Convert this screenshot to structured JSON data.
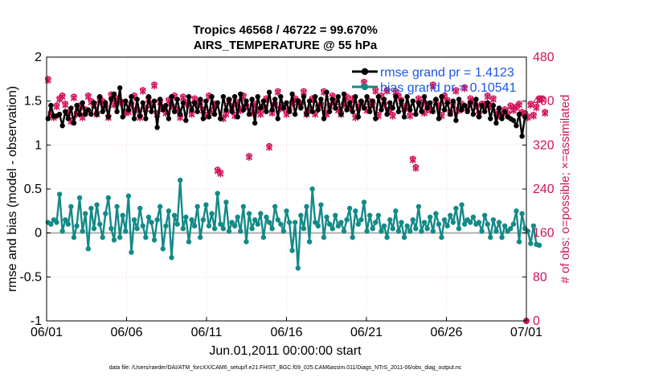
{
  "chart_data": {
    "type": "line",
    "title": [
      "Tropics 46568 / 46722 = 99.670%",
      "AIRS_TEMPERATURE @ 55 hPa"
    ],
    "xlabel": "Jun.01,2011 00:00:00 start",
    "ylabel_left": "rmse and bias (model - observation)",
    "ylabel_right": "# of obs: o=possible; ×=assimilated",
    "ylim_left": [
      -1,
      2
    ],
    "ylim_right": [
      0,
      480
    ],
    "xlim": [
      0,
      30
    ],
    "x_ticks": [
      0,
      5,
      10,
      15,
      20,
      25,
      30
    ],
    "x_tick_labels": [
      "06/01",
      "06/06",
      "06/11",
      "06/16",
      "06/21",
      "06/26",
      "07/01"
    ],
    "y_ticks_left": [
      -1,
      -0.5,
      0,
      0.5,
      1,
      1.5,
      2
    ],
    "y_tick_labels_left": [
      "-1",
      "-0.5",
      "0",
      "0.5",
      "1",
      "1.5",
      "2"
    ],
    "y_ticks_right": [
      0,
      80,
      160,
      240,
      320,
      400,
      480
    ],
    "y_tick_labels_right": [
      "0",
      "80",
      "160",
      "240",
      "320",
      "400",
      "480"
    ],
    "grid": true,
    "legend_position": "top-right",
    "footnote": "data file: /Users/raeder/DAI/ATM_forcXX/CAM6_setup/f.e21.FHIST_BGC.f09_025.CAM6assim.011/Diags_NTrS_2011-06/obs_diag_output.nc",
    "colors": {
      "rmse": "#000000",
      "bias": "#138a88",
      "obs": "#d0125a",
      "legend_text": "#1a56e6",
      "zero_line": "#b0b0b0"
    },
    "series": [
      {
        "name": "rmse grand pr = 1.4123",
        "values": [
          1.3,
          1.45,
          1.33,
          1.33,
          1.35,
          1.22,
          1.38,
          1.3,
          1.42,
          1.25,
          1.45,
          1.35,
          1.48,
          1.35,
          1.4,
          1.35,
          1.48,
          1.35,
          1.55,
          1.38,
          1.48,
          1.32,
          1.52,
          1.58,
          1.38,
          1.65,
          1.32,
          1.5,
          1.4,
          1.55,
          1.3,
          1.52,
          1.33,
          1.48,
          1.3,
          1.55,
          1.38,
          1.5,
          1.2,
          1.52,
          1.4,
          1.45,
          1.3,
          1.55,
          1.38,
          1.52,
          1.35,
          1.48,
          1.28,
          1.55,
          1.4,
          1.48,
          1.38,
          1.52,
          1.3,
          1.5,
          1.32,
          1.55,
          1.35,
          1.48,
          1.3,
          1.55,
          1.4,
          1.52,
          1.38,
          1.55,
          1.32,
          1.58,
          1.4,
          1.5,
          1.35,
          1.52,
          1.25,
          1.55,
          1.42,
          1.5,
          1.38,
          1.6,
          1.4,
          1.52,
          1.3,
          1.55,
          1.42,
          1.48,
          1.38,
          1.58,
          1.35,
          1.5,
          1.42,
          1.55,
          1.35,
          1.5,
          1.38,
          1.55,
          1.4,
          1.52,
          1.3,
          1.6,
          1.38,
          1.52,
          1.42,
          1.55,
          1.35,
          1.58,
          1.4,
          1.48,
          1.38,
          1.55,
          1.32,
          1.5,
          1.42,
          1.55,
          1.38,
          1.5,
          1.3,
          1.55,
          1.4,
          1.52,
          1.35,
          1.48,
          1.42,
          1.55,
          1.38,
          1.5,
          1.32,
          1.55,
          1.4,
          1.5,
          1.35,
          1.48,
          1.38,
          1.55,
          1.42,
          1.48,
          1.38,
          1.52,
          1.3,
          1.55,
          1.4,
          1.48,
          1.35,
          1.5,
          1.28,
          1.52,
          1.4,
          1.45,
          1.38,
          1.48,
          1.35,
          1.52,
          1.32,
          1.45,
          1.38,
          1.48,
          1.3,
          1.45,
          1.25,
          1.42,
          1.3,
          1.38,
          1.32,
          1.3,
          1.28,
          1.22,
          1.35,
          1.1,
          1.32
        ]
      },
      {
        "name": "bias grand pr = 0.10541",
        "values": [
          0.12,
          0.1,
          0.15,
          0.12,
          0.44,
          0.02,
          0.15,
          0.1,
          0.3,
          -0.05,
          0.08,
          0.4,
          0.02,
          0.22,
          -0.18,
          0.28,
          0.05,
          0.32,
          0.1,
          -0.05,
          0.22,
          0.4,
          0.05,
          -0.08,
          0.3,
          -0.05,
          0.2,
          0.02,
          0.42,
          -0.22,
          0.15,
          0.05,
          0.28,
          0.08,
          -0.05,
          0.18,
          0.12,
          -0.08,
          0.15,
          0.3,
          -0.18,
          0.08,
          0.25,
          -0.28,
          0.2,
          0.1,
          0.6,
          0.05,
          0.18,
          -0.1,
          0.15,
          0.08,
          0.3,
          -0.05,
          0.15,
          0.32,
          0.08,
          0.22,
          0.05,
          0.45,
          0.1,
          0.05,
          0.35,
          0.02,
          0.12,
          0.08,
          0.18,
          0.02,
          0.3,
          -0.1,
          0.22,
          0.05,
          0.15,
          0.1,
          0.22,
          -0.05,
          0.18,
          0.12,
          0.05,
          0.3,
          0.15,
          0.1,
          0.02,
          0.25,
          0.12,
          -0.2,
          0.12,
          -0.4,
          0.2,
          0.05,
          0.3,
          -0.1,
          0.5,
          0.12,
          0.08,
          0.32,
          -0.05,
          0.18,
          0.1,
          0.05,
          0.2,
          0.08,
          0.12,
          0.02,
          0.15,
          0.28,
          -0.05,
          0.25,
          0.1,
          0.15,
          0.35,
          0.02,
          0.2,
          0.05,
          0.12,
          0.2,
          0.02,
          0.08,
          -0.05,
          0.15,
          0.05,
          0.25,
          0.02,
          0.12,
          -0.05,
          0.08,
          0.02,
          0.15,
          0.05,
          0.3,
          0.02,
          0.12,
          0.05,
          0.18,
          0.02,
          0.22,
          0.1,
          -0.05,
          0.15,
          0.08,
          0.2,
          0.12,
          0.28,
          0.05,
          0.32,
          0.1,
          0.15,
          0.12,
          0.18,
          0.1,
          0.12,
          0.02,
          0.2,
          0.1,
          -0.05,
          0.15,
          0.02,
          0.12,
          -0.05,
          0.08,
          0.02,
          0.05,
          0.1,
          0.25,
          -0.1,
          0.22,
          0.05,
          0.02,
          -0.12,
          0.08,
          -0.13,
          -0.14
        ]
      },
      {
        "name": "obs possible",
        "values": [
          440,
          378,
          372,
          392,
          405,
          410,
          395,
          380,
          365,
          408,
          378,
          392,
          372,
          385,
          410,
          400,
          395,
          378,
          405,
          400,
          390,
          372,
          412,
          395,
          405,
          400,
          398,
          380,
          382,
          395,
          410,
          385,
          372,
          420,
          388,
          405,
          395,
          430,
          378,
          400,
          388,
          380,
          402,
          392,
          410,
          385,
          372,
          408,
          398,
          395,
          378,
          405,
          395,
          400,
          385,
          375,
          410,
          382,
          395,
          275,
          270,
          370,
          378,
          402,
          390,
          375,
          398,
          385,
          410,
          392,
          300,
          380,
          395,
          385,
          378,
          390,
          405,
          318,
          380,
          395,
          418,
          388,
          392,
          378,
          385,
          398,
          405,
          400,
          395,
          418,
          378,
          385,
          405,
          378,
          390,
          395,
          418,
          378,
          392,
          410,
          400,
          385,
          378,
          395,
          408,
          390,
          405,
          372,
          390,
          398,
          435,
          385,
          400,
          395,
          420,
          375,
          410,
          395,
          420,
          385,
          375,
          418,
          410,
          402,
          388,
          392,
          375,
          295,
          280,
          405,
          398,
          380,
          395,
          385,
          430,
          400,
          392,
          375,
          410,
          402,
          380,
          395,
          420,
          385,
          395,
          425,
          390,
          405,
          400,
          392,
          378,
          395,
          395,
          410,
          392,
          405,
          380,
          375,
          380,
          385,
          378,
          392,
          385,
          390,
          395,
          380,
          378,
          372,
          395,
          375,
          390,
          405,
          405,
          380
        ]
      },
      {
        "name": "obs assimilated",
        "values": [
          438,
          376,
          370,
          390,
          403,
          408,
          393,
          378,
          363,
          406,
          376,
          390,
          370,
          383,
          408,
          398,
          393,
          376,
          403,
          398,
          388,
          370,
          410,
          393,
          403,
          398,
          396,
          378,
          380,
          393,
          408,
          383,
          370,
          418,
          386,
          403,
          393,
          428,
          376,
          398,
          386,
          378,
          400,
          390,
          408,
          383,
          370,
          406,
          396,
          393,
          376,
          403,
          393,
          398,
          383,
          373,
          408,
          380,
          393,
          273,
          268,
          368,
          376,
          400,
          388,
          373,
          396,
          383,
          408,
          390,
          298,
          378,
          393,
          383,
          376,
          388,
          403,
          316,
          378,
          393,
          416,
          386,
          390,
          376,
          383,
          396,
          403,
          398,
          393,
          416,
          376,
          383,
          403,
          376,
          388,
          393,
          416,
          376,
          390,
          408,
          398,
          383,
          376,
          393,
          406,
          388,
          403,
          370,
          388,
          396,
          433,
          383,
          398,
          393,
          418,
          373,
          408,
          393,
          418,
          383,
          373,
          416,
          408,
          400,
          386,
          390,
          373,
          293,
          278,
          403,
          396,
          378,
          393,
          383,
          428,
          398,
          390,
          373,
          408,
          400,
          378,
          393,
          418,
          383,
          393,
          423,
          388,
          403,
          398,
          390,
          376,
          393,
          393,
          408,
          390,
          403,
          378,
          373,
          378,
          383,
          376,
          390,
          383,
          388,
          393,
          378,
          376,
          370,
          393,
          373,
          388,
          403,
          403,
          378
        ]
      }
    ]
  }
}
